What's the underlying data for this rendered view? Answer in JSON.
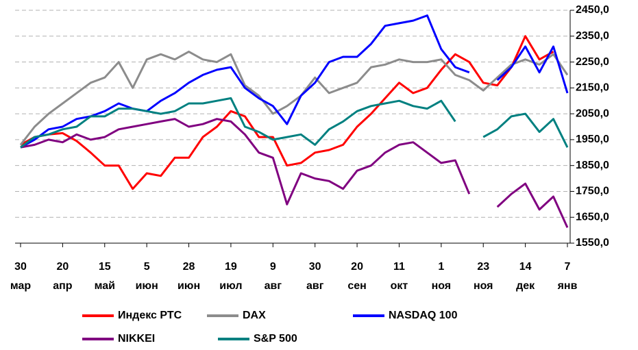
{
  "chart_data": {
    "type": "line",
    "categories": [
      "30 мар",
      null,
      null,
      "20 апр",
      null,
      null,
      "15 май",
      null,
      null,
      "5 июн",
      null,
      null,
      "28 июн",
      null,
      null,
      "19 июл",
      null,
      null,
      "9 авг",
      null,
      null,
      "30 авг",
      null,
      null,
      "20 сен",
      null,
      null,
      "11 окт",
      null,
      null,
      "1 ноя",
      null,
      null,
      "23 ноя",
      null,
      null,
      "14 дек",
      null,
      null,
      "7 янв"
    ],
    "series": [
      {
        "name": "Индекс РТС",
        "color": "#ff0000",
        "values": [
          1930,
          1960,
          1970,
          1975,
          1945,
          1900,
          1850,
          1850,
          1760,
          1820,
          1810,
          1880,
          1880,
          1960,
          2000,
          2060,
          2040,
          1960,
          1960,
          1850,
          1860,
          1900,
          1910,
          1930,
          2000,
          2050,
          2110,
          2170,
          2130,
          2150,
          2220,
          2280,
          2250,
          2170,
          2160,
          2230,
          2350,
          2260,
          2290,
          null
        ]
      },
      {
        "name": "DAX",
        "color": "#8c8c8c",
        "values": [
          1930,
          2000,
          2050,
          2090,
          2130,
          2170,
          2190,
          2250,
          2150,
          2260,
          2280,
          2260,
          2290,
          2260,
          2250,
          2280,
          2160,
          2120,
          2050,
          2080,
          2120,
          2190,
          2130,
          2150,
          2170,
          2230,
          2240,
          2260,
          2250,
          2250,
          2260,
          2200,
          2180,
          2140,
          2190,
          2240,
          2260,
          2240,
          2280,
          2200
        ]
      },
      {
        "name": "NASDAQ 100",
        "color": "#0000ff",
        "values": [
          1920,
          1950,
          1990,
          2000,
          2030,
          2040,
          2060,
          2090,
          2070,
          2060,
          2100,
          2130,
          2170,
          2200,
          2220,
          2230,
          2150,
          2110,
          2080,
          2010,
          2120,
          2170,
          2250,
          2270,
          2270,
          2320,
          2390,
          2400,
          2410,
          2430,
          2300,
          2230,
          2210,
          null,
          2180,
          2230,
          2310,
          2210,
          2310,
          2130
        ]
      },
      {
        "name": "NIKKEI",
        "color": "#800080",
        "values": [
          1920,
          1930,
          1950,
          1940,
          1970,
          1950,
          1960,
          1990,
          2000,
          2010,
          2020,
          2030,
          2000,
          2010,
          2030,
          2020,
          1970,
          1900,
          1880,
          1700,
          1820,
          1800,
          1790,
          1760,
          1830,
          1850,
          1900,
          1930,
          1940,
          1900,
          1860,
          1870,
          1740,
          null,
          1690,
          1740,
          1780,
          1680,
          1730,
          1610
        ]
      },
      {
        "name": "S&P 500",
        "color": "#008080",
        "values": [
          1920,
          1960,
          1970,
          1990,
          2000,
          2040,
          2040,
          2070,
          2070,
          2060,
          2050,
          2060,
          2090,
          2090,
          2100,
          2110,
          2000,
          1980,
          1950,
          1960,
          1970,
          1930,
          1990,
          2020,
          2060,
          2080,
          2090,
          2100,
          2080,
          2070,
          2100,
          2020,
          null,
          1960,
          1990,
          2040,
          2050,
          1980,
          2030,
          1920
        ]
      }
    ],
    "ylim": [
      1550,
      2450
    ],
    "yticks": [
      {
        "value": 1550,
        "label": "1550,0"
      },
      {
        "value": 1650,
        "label": "1650,0"
      },
      {
        "value": 1750,
        "label": "1750,0"
      },
      {
        "value": 1850,
        "label": "1850,0"
      },
      {
        "value": 1950,
        "label": "1950,0"
      },
      {
        "value": 2050,
        "label": "2050,0"
      },
      {
        "value": 2150,
        "label": "2150,0"
      },
      {
        "value": 2250,
        "label": "2250,0"
      },
      {
        "value": 2350,
        "label": "2350,0"
      },
      {
        "value": 2450,
        "label": "2450,0"
      }
    ],
    "grid": true
  }
}
